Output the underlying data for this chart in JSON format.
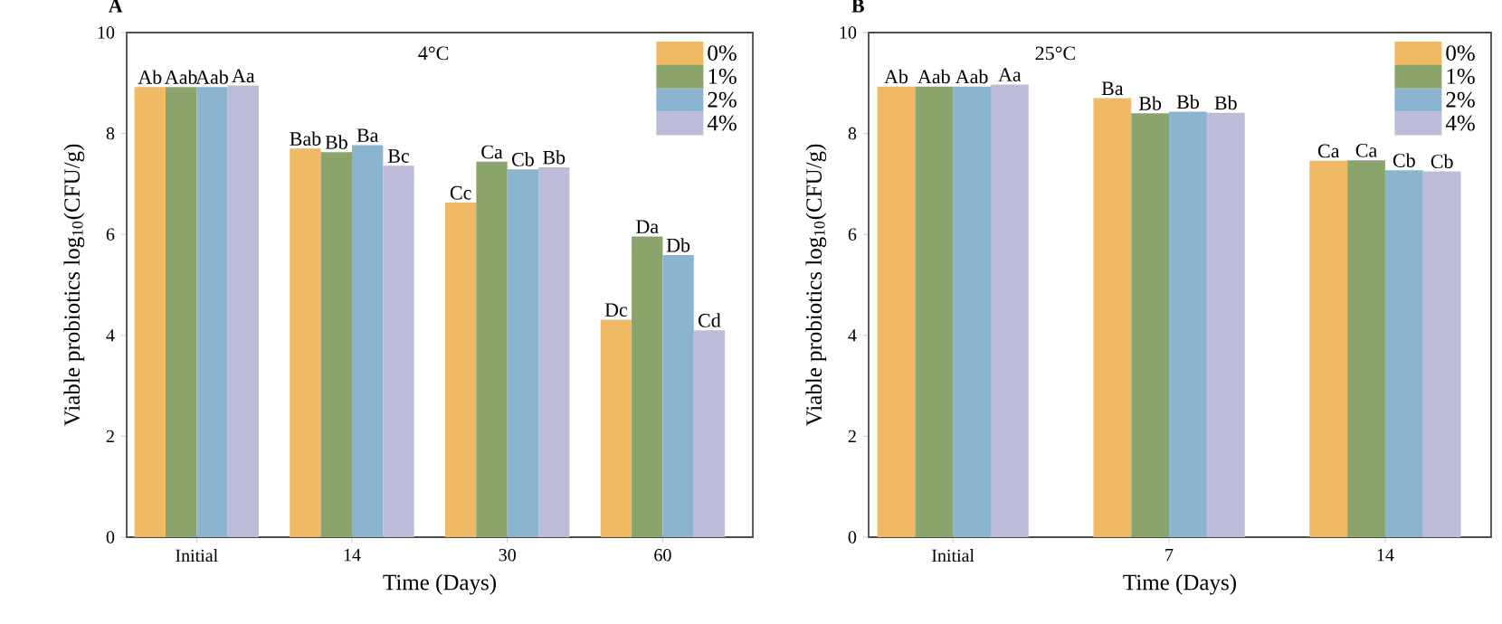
{
  "chart_data": [
    {
      "type": "bar",
      "title": "A",
      "annotations": [
        "4°C"
      ],
      "xlabel": "Time (Days)",
      "ylabel": "Viable probiotics log$_{10}$(CFU/g)",
      "categories": [
        "Initial",
        "14",
        "30",
        "60"
      ],
      "ylim": [
        0,
        10
      ],
      "yticks": [
        0,
        2,
        4,
        6,
        8,
        10
      ],
      "legend": "top right",
      "series": [
        {
          "name": "0%",
          "color": "#f0b964",
          "values": [
            8.92,
            7.7,
            6.63,
            4.31
          ],
          "value_labels": [
            "Ab",
            "Bab",
            "Cc",
            "Dc"
          ]
        },
        {
          "name": "1%",
          "color": "#8aa46c",
          "values": [
            8.92,
            7.63,
            7.44,
            5.96
          ],
          "value_labels": [
            "Aab",
            "Bb",
            "Ca",
            "Da"
          ]
        },
        {
          "name": "2%",
          "color": "#8ab4cf",
          "values": [
            8.92,
            7.77,
            7.29,
            5.59
          ],
          "value_labels": [
            "Aab",
            "Ba",
            "Cb",
            "Db"
          ]
        },
        {
          "name": "4%",
          "color": "#bcbcd8",
          "values": [
            8.95,
            7.36,
            7.33,
            4.1
          ],
          "value_labels": [
            "Aa",
            "Bc",
            "Bb",
            "Cd"
          ]
        }
      ]
    },
    {
      "type": "bar",
      "title": "B",
      "annotations": [
        "25°C"
      ],
      "xlabel": "Time (Days)",
      "ylabel": "Viable probiotics log$_{10}$(CFU/g)",
      "categories": [
        "Initial",
        "7",
        "14"
      ],
      "ylim": [
        0,
        10
      ],
      "yticks": [
        0,
        2,
        4,
        6,
        8,
        10
      ],
      "legend": "top right",
      "series": [
        {
          "name": "0%",
          "color": "#f0b964",
          "values": [
            8.93,
            8.7,
            7.46
          ],
          "value_labels": [
            "Ab",
            "Ba",
            "Ca"
          ]
        },
        {
          "name": "1%",
          "color": "#8aa46c",
          "values": [
            8.93,
            8.4,
            7.47
          ],
          "value_labels": [
            "Aab",
            "Bb",
            "Ca"
          ]
        },
        {
          "name": "2%",
          "color": "#8ab4cf",
          "values": [
            8.93,
            8.43,
            7.27
          ],
          "value_labels": [
            "Aab",
            "Bb",
            "Cb"
          ]
        },
        {
          "name": "4%",
          "color": "#bcbcd8",
          "values": [
            8.97,
            8.41,
            7.25
          ],
          "value_labels": [
            "Aa",
            "Bb",
            "Cb"
          ]
        }
      ]
    }
  ]
}
